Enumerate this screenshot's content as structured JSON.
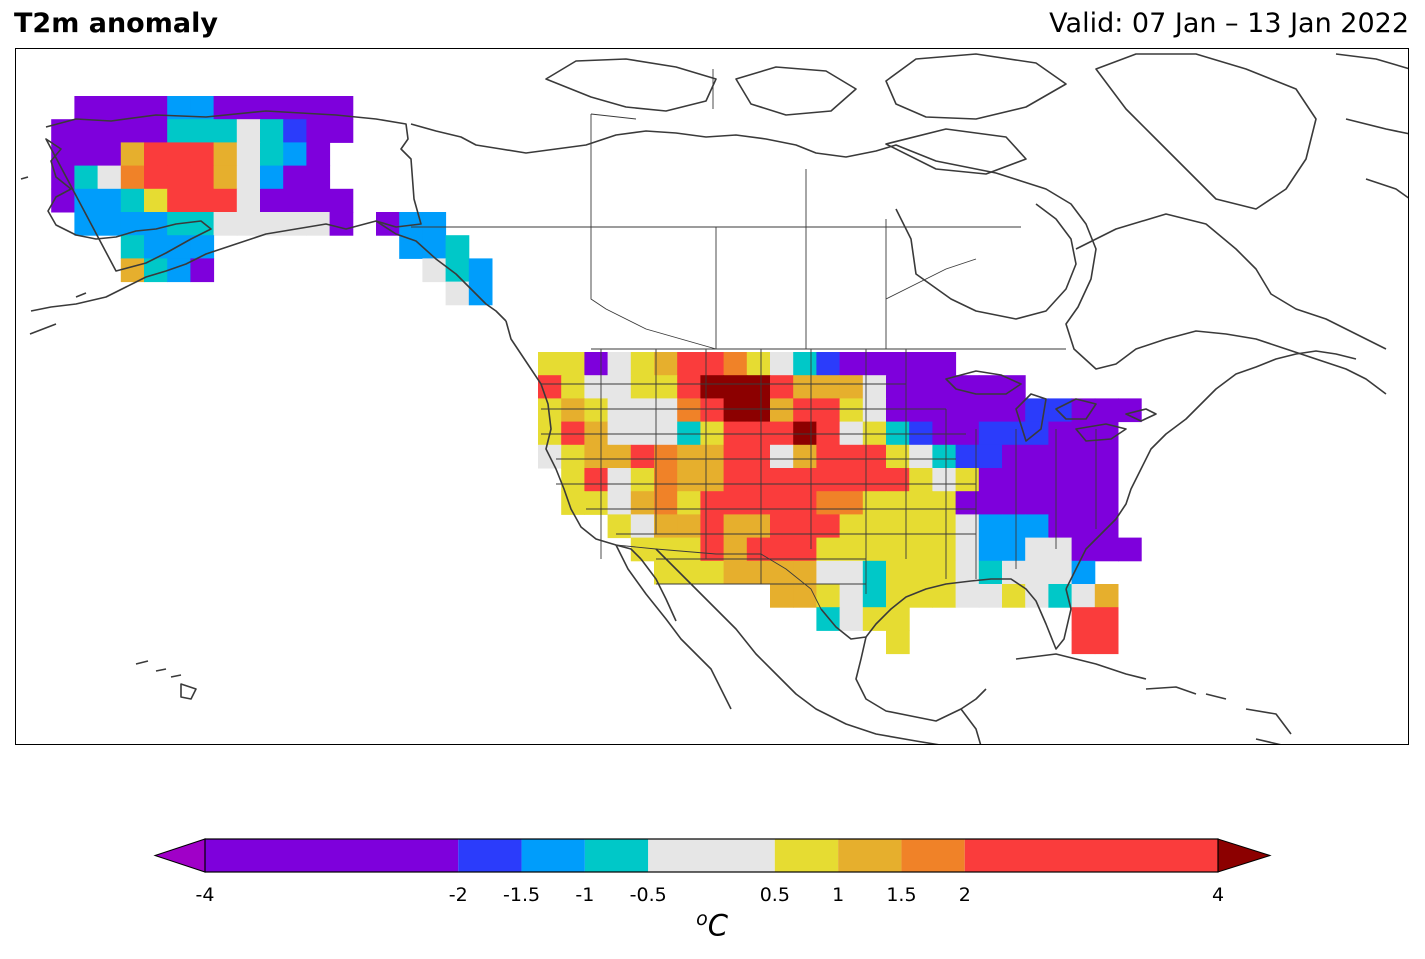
{
  "header": {
    "title": "T2m anomaly",
    "valid": "Valid: 07 Jan – 13 Jan 2022"
  },
  "colorbar": {
    "unit_prefix": "o",
    "unit": "C",
    "ticks": [
      "-4",
      "-2",
      "-1.5",
      "-1",
      "-0.5",
      "0.5",
      "1",
      "1.5",
      "2",
      "4"
    ],
    "bins": [
      {
        "min": -4,
        "max": -2,
        "color": "#7e00dc"
      },
      {
        "min": -2,
        "max": -1.5,
        "color": "#2b3cfb"
      },
      {
        "min": -1.5,
        "max": -1,
        "color": "#009dfb"
      },
      {
        "min": -1,
        "max": -0.5,
        "color": "#00c8c8"
      },
      {
        "min": -0.5,
        "max": 0.5,
        "color": "#e6e6e6"
      },
      {
        "min": 0.5,
        "max": 1,
        "color": "#e6dc32"
      },
      {
        "min": 1,
        "max": 1.5,
        "color": "#e6af2d"
      },
      {
        "min": 1.5,
        "max": 2,
        "color": "#f08228"
      },
      {
        "min": 2,
        "max": 4,
        "color": "#fa3c3c"
      }
    ],
    "under_color": "#a000c8",
    "over_color": "#8c0000"
  },
  "map": {
    "region": "North America",
    "regions_shaded": [
      {
        "name": "Alaska (west/north)",
        "anomaly": -3
      },
      {
        "name": "Alaska (interior)",
        "anomaly": 3
      },
      {
        "name": "Alaska (south)",
        "anomaly": -1.2
      },
      {
        "name": "Pacific Northwest",
        "anomaly": 1
      },
      {
        "name": "Northern Rockies",
        "anomaly": 3
      },
      {
        "name": "Northern Plains",
        "anomaly": 4.5
      },
      {
        "name": "Central Plains",
        "anomaly": 3
      },
      {
        "name": "Southwest",
        "anomaly": 2.5
      },
      {
        "name": "Southern Plains",
        "anomaly": 0.8
      },
      {
        "name": "Great Lakes",
        "anomaly": -3
      },
      {
        "name": "Northeast",
        "anomaly": -3
      },
      {
        "name": "Southeast",
        "anomaly": -1.2
      },
      {
        "name": "Florida",
        "anomaly": 3
      }
    ]
  }
}
